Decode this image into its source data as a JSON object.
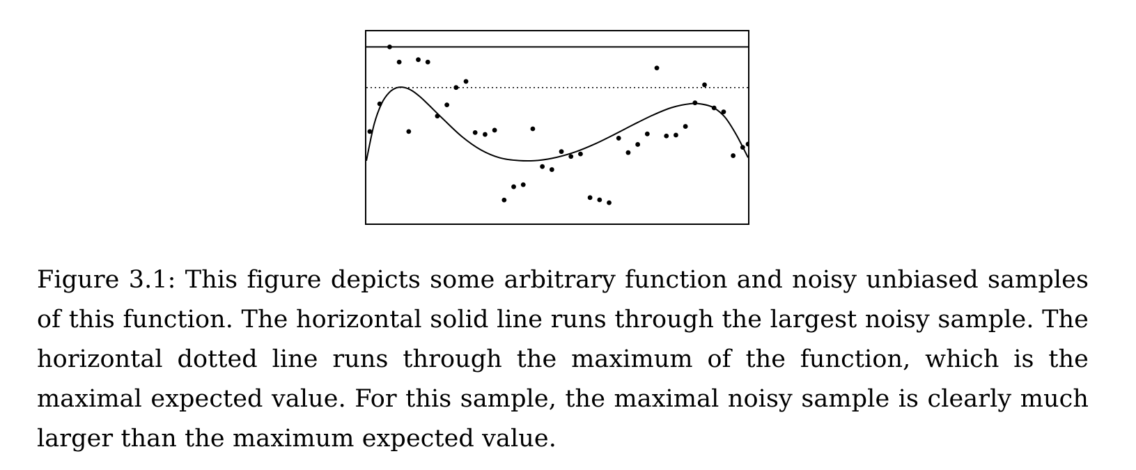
{
  "chart_data": {
    "type": "scatter",
    "title": "",
    "xlabel": "",
    "ylabel": "",
    "xlim": [
      0,
      1
    ],
    "ylim": [
      0,
      1
    ],
    "grid": false,
    "ticks": false,
    "series": [
      {
        "kind": "points",
        "x": [
          0.009,
          0.035,
          0.061,
          0.086,
          0.111,
          0.136,
          0.161,
          0.186,
          0.211,
          0.235,
          0.261,
          0.285,
          0.311,
          0.336,
          0.361,
          0.386,
          0.411,
          0.436,
          0.461,
          0.486,
          0.511,
          0.536,
          0.561,
          0.586,
          0.611,
          0.636,
          0.661,
          0.686,
          0.711,
          0.736,
          0.761,
          0.786,
          0.811,
          0.836,
          0.861,
          0.886,
          0.911,
          0.936,
          0.961,
          0.986,
          1.0
        ],
        "y": [
          0.484,
          0.647,
          0.982,
          0.893,
          0.484,
          0.907,
          0.893,
          0.575,
          0.641,
          0.743,
          0.779,
          0.478,
          0.467,
          0.492,
          0.081,
          0.159,
          0.171,
          0.5,
          0.278,
          0.26,
          0.366,
          0.337,
          0.352,
          0.095,
          0.082,
          0.065,
          0.445,
          0.36,
          0.408,
          0.47,
          0.858,
          0.458,
          0.463,
          0.514,
          0.653,
          0.759,
          0.623,
          0.6,
          0.342,
          0.391,
          0.41
        ]
      },
      {
        "kind": "function",
        "x": [
          0,
          0.02,
          0.04,
          0.06,
          0.08,
          0.1,
          0.12,
          0.14,
          0.16,
          0.2,
          0.25,
          0.3,
          0.35,
          0.4,
          0.45,
          0.5,
          0.55,
          0.6,
          0.65,
          0.7,
          0.75,
          0.8,
          0.85,
          0.88,
          0.91,
          0.94,
          0.97,
          1.0
        ],
        "y": [
          0.312,
          0.524,
          0.649,
          0.714,
          0.742,
          0.743,
          0.724,
          0.69,
          0.648,
          0.56,
          0.455,
          0.376,
          0.329,
          0.313,
          0.314,
          0.333,
          0.366,
          0.412,
          0.467,
          0.525,
          0.58,
          0.625,
          0.648,
          0.645,
          0.624,
          0.567,
          0.462,
          0.331
        ]
      }
    ],
    "reference_lines": [
      {
        "style": "solid",
        "y": 0.982
      },
      {
        "style": "dotted",
        "y": 0.743
      }
    ]
  },
  "caption": "Figure 3.1: This figure depicts some arbitrary function and noisy unbiased samples of this function. The horizontal solid line runs through the largest noisy sample. The horizontal dotted line runs through the maximum of the function, which is the maximal expected value. For this sample, the maximal noisy sample is clearly much larger than the maximum expected value."
}
